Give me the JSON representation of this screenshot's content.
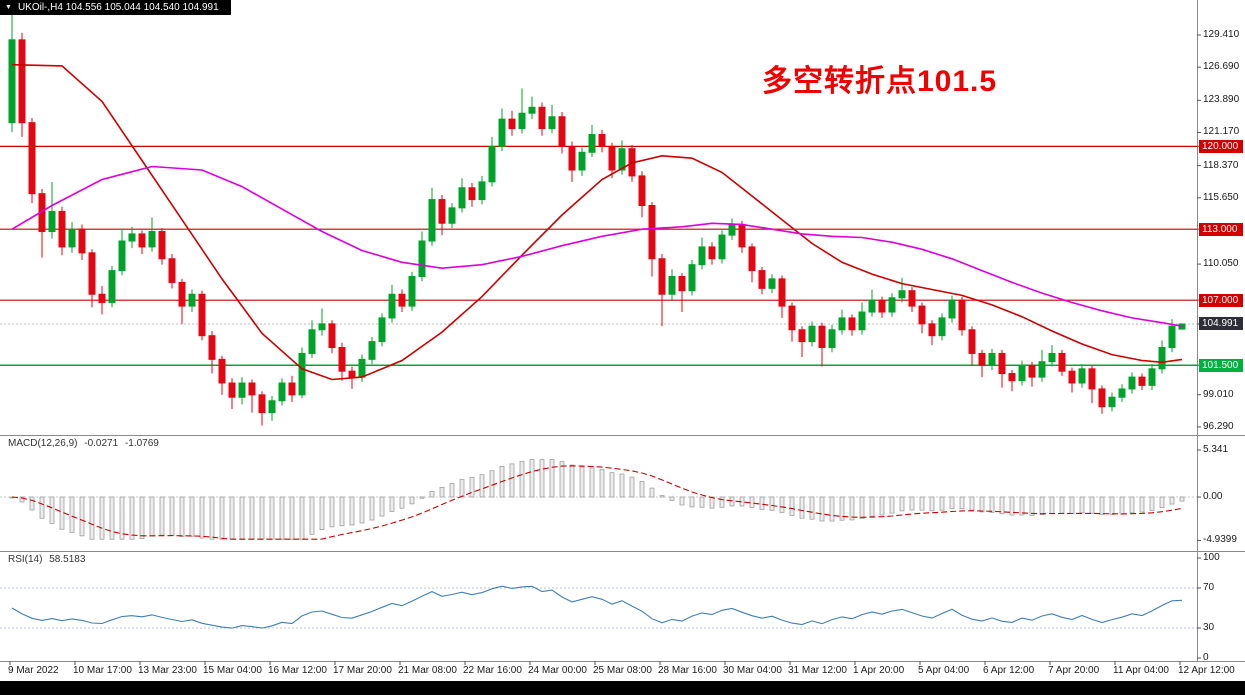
{
  "window": {
    "title": "UKOil-,H4 104.556 105.044 104.540 104.991",
    "symbol": "UKOil-",
    "timeframe": "H4",
    "open": "104.556",
    "high": "105.044",
    "low": "104.540",
    "close": "104.991"
  },
  "annotation": {
    "text": "多空转折点101.5",
    "color": "#F00000"
  },
  "colors": {
    "up": "#00A329",
    "down": "#E30613",
    "ma_fast": "#DD00DD",
    "ma_slow": "#CC0000",
    "level_red": "#CC0000",
    "level_green": "#00A53C",
    "current_dotted": "#b8b8b8",
    "macd_hist_fill": "#ececec",
    "macd_hist_stroke": "#9e9e9e",
    "macd_signal": "#CC0000",
    "rsi_line": "#3E7FB8",
    "rsi_level_dash": "#b9c2d1",
    "separator": "#8a8a8a"
  },
  "price_axis": {
    "labels": [
      {
        "text": "129.410",
        "price": 129.41
      },
      {
        "text": "126.690",
        "price": 126.69
      },
      {
        "text": "123.890",
        "price": 123.89
      },
      {
        "text": "121.170",
        "price": 121.17
      },
      {
        "text": "118.370",
        "price": 118.37
      },
      {
        "text": "115.650",
        "price": 115.65
      },
      {
        "text": "110.050",
        "price": 110.05
      },
      {
        "text": "99.010",
        "price": 99.01
      },
      {
        "text": "96.290",
        "price": 96.29
      }
    ],
    "badges": [
      {
        "text": "120.000",
        "price": 120.0,
        "bg": "#D40000",
        "name": "resistance-badge-120"
      },
      {
        "text": "113.000",
        "price": 113.0,
        "bg": "#D40000",
        "name": "resistance-badge-113"
      },
      {
        "text": "107.000",
        "price": 107.0,
        "bg": "#D40000",
        "name": "resistance-badge-107"
      },
      {
        "text": "104.991",
        "price": 104.991,
        "bg": "#2E2E38",
        "name": "current-price-badge"
      },
      {
        "text": "101.500",
        "price": 101.5,
        "bg": "#00B140",
        "name": "support-badge-101-5"
      }
    ]
  },
  "macd_panel": {
    "label": "MACD(12,26,9)",
    "value": "-0.0271",
    "signal_value": "-1.0769",
    "axis": [
      {
        "text": "5.341",
        "v": 5.341
      },
      {
        "text": "0.00",
        "v": 0
      },
      {
        "text": "-4.9399",
        "v": -4.9399
      }
    ]
  },
  "rsi_panel": {
    "label": "RSI(14)",
    "value": "58.5183",
    "axis": [
      {
        "text": "100",
        "v": 100
      },
      {
        "text": "70",
        "v": 70
      },
      {
        "text": "30",
        "v": 30
      },
      {
        "text": "0",
        "v": 0
      }
    ],
    "levels": [
      70,
      30
    ]
  },
  "time_axis": {
    "labels": [
      "9 Mar 2022",
      "10 Mar 17:00",
      "13 Mar 23:00",
      "15 Mar 04:00",
      "16 Mar 12:00",
      "17 Mar 20:00",
      "21 Mar 08:00",
      "22 Mar 16:00",
      "24 Mar 00:00",
      "25 Mar 08:00",
      "28 Mar 16:00",
      "30 Mar 04:00",
      "31 Mar 12:00",
      "1 Apr 20:00",
      "5 Apr 04:00",
      "6 Apr 12:00",
      "7 Apr 20:00",
      "11 Apr 04:00",
      "12 Apr 12:00"
    ]
  },
  "chart_data": {
    "type": "candlestick",
    "symbol": "UKOil-",
    "timeframe": "H4",
    "title": "UKOil-,H4 104.556 105.044 104.540 104.991",
    "price_axis_range": [
      96.29,
      129.41
    ],
    "current_price": 104.991,
    "levels": {
      "red": [
        120.0,
        113.0,
        107.0
      ],
      "green": [
        101.5
      ]
    },
    "annotation": {
      "text": "多空转折点101.5",
      "meaning": "bull/bear turning point 101.5"
    },
    "candles_ohlc": [
      [
        122.0,
        131.6,
        121.2,
        129.0
      ],
      [
        129.0,
        129.6,
        120.8,
        122.0
      ],
      [
        122.0,
        122.4,
        115.2,
        116.0
      ],
      [
        116.0,
        116.4,
        110.6,
        112.8
      ],
      [
        112.8,
        117.0,
        112.2,
        114.5
      ],
      [
        114.5,
        114.9,
        110.8,
        111.5
      ],
      [
        111.5,
        113.6,
        111.0,
        113.0
      ],
      [
        113.0,
        113.4,
        110.4,
        111.0
      ],
      [
        111.0,
        111.3,
        106.4,
        107.5
      ],
      [
        107.5,
        108.2,
        105.8,
        106.8
      ],
      [
        106.8,
        109.9,
        106.4,
        109.5
      ],
      [
        109.5,
        113.0,
        109.1,
        112.0
      ],
      [
        112.0,
        113.2,
        111.4,
        112.6
      ],
      [
        112.6,
        112.9,
        110.9,
        111.5
      ],
      [
        111.5,
        114.0,
        111.1,
        112.8
      ],
      [
        112.8,
        113.1,
        110.0,
        110.5
      ],
      [
        110.5,
        110.9,
        108.0,
        108.5
      ],
      [
        108.5,
        108.8,
        105.0,
        106.5
      ],
      [
        106.5,
        107.9,
        106.0,
        107.5
      ],
      [
        107.5,
        107.8,
        103.6,
        104.0
      ],
      [
        104.0,
        104.4,
        100.8,
        102.0
      ],
      [
        102.0,
        102.3,
        99.0,
        100.0
      ],
      [
        100.0,
        100.4,
        97.8,
        98.8
      ],
      [
        98.8,
        100.5,
        98.2,
        100.0
      ],
      [
        100.0,
        100.3,
        97.5,
        99.0
      ],
      [
        99.0,
        99.3,
        96.4,
        97.5
      ],
      [
        97.5,
        98.9,
        96.8,
        98.5
      ],
      [
        98.5,
        100.4,
        98.1,
        100.0
      ],
      [
        100.0,
        100.6,
        98.4,
        99.0
      ],
      [
        99.0,
        103.0,
        98.7,
        102.5
      ],
      [
        102.5,
        105.3,
        102.1,
        104.5
      ],
      [
        104.5,
        106.3,
        104.0,
        105.0
      ],
      [
        105.0,
        105.3,
        102.5,
        103.0
      ],
      [
        103.0,
        103.4,
        100.2,
        101.0
      ],
      [
        101.0,
        101.4,
        99.5,
        100.5
      ],
      [
        100.5,
        102.4,
        100.1,
        102.0
      ],
      [
        102.0,
        103.9,
        101.6,
        103.5
      ],
      [
        103.5,
        105.9,
        103.1,
        105.5
      ],
      [
        105.5,
        108.3,
        105.1,
        107.5
      ],
      [
        107.5,
        107.9,
        106.0,
        106.5
      ],
      [
        106.5,
        109.4,
        106.1,
        109.0
      ],
      [
        109.0,
        112.8,
        108.6,
        112.0
      ],
      [
        112.0,
        116.5,
        111.6,
        115.5
      ],
      [
        115.5,
        115.9,
        112.5,
        113.5
      ],
      [
        113.5,
        115.2,
        113.1,
        114.8
      ],
      [
        114.8,
        117.3,
        114.4,
        116.5
      ],
      [
        116.5,
        116.9,
        114.9,
        115.5
      ],
      [
        115.5,
        117.5,
        115.1,
        117.0
      ],
      [
        117.0,
        120.8,
        116.6,
        120.0
      ],
      [
        120.0,
        123.2,
        119.6,
        122.3
      ],
      [
        122.3,
        123.0,
        120.9,
        121.5
      ],
      [
        121.5,
        124.9,
        121.1,
        122.8
      ],
      [
        122.8,
        124.2,
        122.3,
        123.3
      ],
      [
        123.3,
        123.7,
        120.9,
        121.5
      ],
      [
        121.5,
        123.5,
        121.1,
        122.5
      ],
      [
        122.5,
        122.9,
        119.4,
        120.0
      ],
      [
        120.0,
        120.4,
        117.0,
        118.0
      ],
      [
        118.0,
        119.9,
        117.5,
        119.5
      ],
      [
        119.5,
        121.8,
        119.1,
        121.0
      ],
      [
        121.0,
        121.4,
        119.5,
        120.0
      ],
      [
        120.0,
        120.3,
        117.3,
        118.0
      ],
      [
        118.0,
        120.5,
        117.6,
        119.8
      ],
      [
        119.8,
        120.1,
        117.0,
        117.5
      ],
      [
        117.5,
        117.9,
        114.0,
        115.0
      ],
      [
        115.0,
        115.3,
        109.0,
        110.5
      ],
      [
        110.5,
        110.9,
        104.8,
        107.5
      ],
      [
        107.5,
        109.6,
        107.0,
        109.0
      ],
      [
        109.0,
        109.3,
        106.0,
        107.8
      ],
      [
        107.8,
        110.4,
        107.4,
        110.0
      ],
      [
        110.0,
        112.3,
        109.6,
        111.5
      ],
      [
        111.5,
        111.9,
        110.0,
        110.5
      ],
      [
        110.5,
        112.9,
        110.1,
        112.5
      ],
      [
        112.5,
        113.9,
        112.1,
        113.4
      ],
      [
        113.4,
        113.7,
        111.0,
        111.5
      ],
      [
        111.5,
        111.8,
        108.5,
        109.5
      ],
      [
        109.5,
        109.8,
        107.5,
        108.0
      ],
      [
        108.0,
        109.2,
        107.6,
        108.8
      ],
      [
        108.8,
        109.1,
        105.5,
        106.5
      ],
      [
        106.5,
        106.8,
        103.5,
        104.5
      ],
      [
        104.5,
        104.8,
        102.2,
        103.5
      ],
      [
        103.5,
        105.2,
        103.1,
        104.8
      ],
      [
        104.8,
        105.1,
        101.4,
        103.0
      ],
      [
        103.0,
        104.9,
        102.6,
        104.5
      ],
      [
        104.5,
        106.2,
        104.1,
        105.5
      ],
      [
        105.5,
        105.8,
        104.0,
        104.5
      ],
      [
        104.5,
        106.8,
        104.1,
        106.0
      ],
      [
        106.0,
        107.9,
        105.6,
        107.0
      ],
      [
        107.0,
        107.3,
        105.5,
        106.0
      ],
      [
        106.0,
        107.6,
        105.6,
        107.2
      ],
      [
        107.2,
        108.9,
        106.8,
        107.8
      ],
      [
        107.8,
        108.1,
        106.0,
        106.5
      ],
      [
        106.5,
        106.8,
        104.2,
        105.0
      ],
      [
        105.0,
        105.3,
        103.2,
        104.0
      ],
      [
        104.0,
        105.9,
        103.6,
        105.5
      ],
      [
        105.5,
        107.4,
        105.1,
        107.0
      ],
      [
        107.0,
        107.3,
        104.0,
        104.5
      ],
      [
        104.5,
        104.8,
        101.5,
        102.5
      ],
      [
        102.5,
        102.8,
        100.5,
        101.5
      ],
      [
        101.5,
        102.9,
        101.1,
        102.5
      ],
      [
        102.5,
        102.8,
        99.6,
        100.8
      ],
      [
        100.8,
        101.1,
        99.3,
        100.2
      ],
      [
        100.2,
        101.9,
        99.8,
        101.5
      ],
      [
        101.5,
        101.8,
        99.7,
        100.5
      ],
      [
        100.5,
        102.8,
        100.1,
        101.8
      ],
      [
        101.8,
        103.2,
        101.4,
        102.5
      ],
      [
        102.5,
        102.8,
        100.6,
        101.0
      ],
      [
        101.0,
        101.3,
        99.2,
        100.0
      ],
      [
        100.0,
        101.6,
        99.6,
        101.2
      ],
      [
        101.2,
        101.5,
        98.3,
        99.5
      ],
      [
        99.5,
        99.8,
        97.4,
        98.0
      ],
      [
        98.0,
        99.2,
        97.6,
        98.8
      ],
      [
        98.8,
        99.9,
        98.4,
        99.5
      ],
      [
        99.5,
        100.9,
        99.1,
        100.5
      ],
      [
        100.5,
        100.8,
        99.4,
        99.8
      ],
      [
        99.8,
        101.6,
        99.4,
        101.2
      ],
      [
        101.2,
        103.6,
        100.8,
        103.0
      ],
      [
        103.0,
        105.4,
        102.6,
        104.8
      ],
      [
        104.556,
        105.044,
        104.54,
        104.991
      ]
    ],
    "ma_fast": {
      "label": "fast moving average (magenta)",
      "points": [
        [
          0,
          113.0
        ],
        [
          4,
          115.0
        ],
        [
          9,
          117.2
        ],
        [
          14,
          118.3
        ],
        [
          19,
          118.0
        ],
        [
          23,
          116.6
        ],
        [
          27,
          114.7
        ],
        [
          31,
          112.8
        ],
        [
          35,
          111.2
        ],
        [
          39,
          110.2
        ],
        [
          43,
          109.7
        ],
        [
          47,
          110.0
        ],
        [
          51,
          110.7
        ],
        [
          55,
          111.6
        ],
        [
          59,
          112.4
        ],
        [
          63,
          113.0
        ],
        [
          67,
          113.2
        ],
        [
          70,
          113.5
        ],
        [
          73,
          113.4
        ],
        [
          76,
          113.0
        ],
        [
          79,
          112.6
        ],
        [
          82,
          112.4
        ],
        [
          85,
          112.3
        ],
        [
          88,
          111.9
        ],
        [
          91,
          111.3
        ],
        [
          94,
          110.5
        ],
        [
          97,
          109.5
        ],
        [
          100,
          108.5
        ],
        [
          103,
          107.6
        ],
        [
          106,
          106.8
        ],
        [
          109,
          106.1
        ],
        [
          112,
          105.5
        ],
        [
          115,
          105.1
        ],
        [
          117,
          104.8
        ]
      ]
    },
    "ma_slow": {
      "label": "slow moving average (red)",
      "points": [
        [
          0,
          126.9
        ],
        [
          5,
          126.8
        ],
        [
          9,
          123.8
        ],
        [
          13,
          118.8
        ],
        [
          17,
          113.8
        ],
        [
          21,
          108.8
        ],
        [
          25,
          104.2
        ],
        [
          29,
          101.2
        ],
        [
          32,
          100.3
        ],
        [
          35,
          100.5
        ],
        [
          39,
          101.9
        ],
        [
          43,
          104.3
        ],
        [
          47,
          107.3
        ],
        [
          51,
          110.8
        ],
        [
          55,
          114.2
        ],
        [
          59,
          117.2
        ],
        [
          62,
          118.6
        ],
        [
          65,
          119.2
        ],
        [
          68,
          119.0
        ],
        [
          71,
          117.8
        ],
        [
          74,
          115.8
        ],
        [
          77,
          113.8
        ],
        [
          80,
          111.8
        ],
        [
          83,
          110.2
        ],
        [
          86,
          109.2
        ],
        [
          89,
          108.4
        ],
        [
          92,
          107.9
        ],
        [
          95,
          107.4
        ],
        [
          98,
          106.6
        ],
        [
          101,
          105.6
        ],
        [
          104,
          104.4
        ],
        [
          107,
          103.3
        ],
        [
          110,
          102.4
        ],
        [
          113,
          101.9
        ],
        [
          115,
          101.75
        ],
        [
          117,
          102.0
        ]
      ]
    },
    "indicators": {
      "macd": {
        "params": [
          12,
          26,
          9
        ],
        "value": -0.0271,
        "signal": -1.0769,
        "axis_max": 5.341,
        "axis_min": -4.9399
      },
      "rsi": {
        "period": 14,
        "value": 58.5183,
        "levels": [
          70,
          30
        ],
        "axis": [
          100,
          70,
          30,
          0
        ]
      }
    }
  }
}
